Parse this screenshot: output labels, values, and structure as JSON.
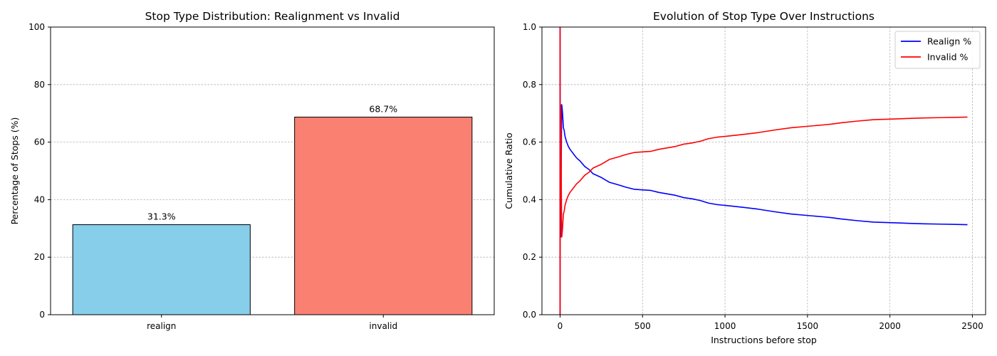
{
  "chart_data": [
    {
      "type": "bar",
      "title": "Stop Type Distribution: Realignment vs Invalid",
      "xlabel": "",
      "ylabel": "Percentage of Stops (%)",
      "ylim": [
        0,
        100
      ],
      "yticks": [
        0,
        20,
        40,
        60,
        80,
        100
      ],
      "grid": "y",
      "categories": [
        "realign",
        "invalid"
      ],
      "values": [
        31.3,
        68.7
      ],
      "value_labels": [
        "31.3%",
        "68.7%"
      ],
      "colors": [
        "#87ceeb",
        "#fa8072"
      ],
      "edgecolor": "#000000"
    },
    {
      "type": "line",
      "title": "Evolution of Stop Type Over Instructions",
      "xlabel": "Instructions before stop",
      "ylabel": "Cumulative Ratio",
      "xlim": [
        -110,
        2580
      ],
      "ylim": [
        0,
        1
      ],
      "xticks": [
        0,
        500,
        1000,
        1500,
        2000,
        2500
      ],
      "yticks": [
        0.0,
        0.2,
        0.4,
        0.6,
        0.8,
        1.0
      ],
      "ytick_labels": [
        "0.0",
        "0.2",
        "0.4",
        "0.6",
        "0.8",
        "1.0"
      ],
      "grid": "both",
      "legend": "top-right",
      "series": [
        {
          "name": "Realign %",
          "color": "#0000ff",
          "x": [
            0,
            0,
            1,
            2,
            3,
            5,
            8,
            10,
            12,
            15,
            20,
            25,
            30,
            40,
            50,
            60,
            80,
            100,
            120,
            150,
            175,
            200,
            250,
            300,
            350,
            400,
            450,
            500,
            550,
            600,
            650,
            700,
            750,
            800,
            850,
            900,
            950,
            1000,
            1100,
            1200,
            1300,
            1400,
            1500,
            1600,
            1650,
            1700,
            1800,
            1900,
            2000,
            2100,
            2200,
            2300,
            2400,
            2470
          ],
          "y": [
            0.0,
            1.0,
            0.5,
            0.3,
            0.27,
            0.3,
            0.6,
            0.73,
            0.72,
            0.7,
            0.65,
            0.64,
            0.62,
            0.6,
            0.585,
            0.575,
            0.56,
            0.545,
            0.535,
            0.515,
            0.505,
            0.49,
            0.477,
            0.46,
            0.452,
            0.443,
            0.436,
            0.434,
            0.432,
            0.425,
            0.42,
            0.415,
            0.407,
            0.403,
            0.397,
            0.388,
            0.383,
            0.38,
            0.374,
            0.367,
            0.358,
            0.35,
            0.345,
            0.34,
            0.337,
            0.333,
            0.327,
            0.322,
            0.32,
            0.318,
            0.316,
            0.315,
            0.314,
            0.313
          ]
        },
        {
          "name": "Invalid %",
          "color": "#ff0000",
          "x": [
            0,
            0,
            1,
            2,
            3,
            5,
            8,
            10,
            12,
            15,
            20,
            25,
            30,
            40,
            50,
            60,
            80,
            100,
            120,
            150,
            175,
            200,
            250,
            300,
            350,
            400,
            450,
            500,
            550,
            600,
            650,
            700,
            750,
            800,
            850,
            900,
            950,
            1000,
            1100,
            1200,
            1300,
            1400,
            1500,
            1600,
            1650,
            1700,
            1800,
            1900,
            2000,
            2100,
            2200,
            2300,
            2400,
            2470
          ],
          "y": [
            1.0,
            0.0,
            0.5,
            0.7,
            0.73,
            0.7,
            0.4,
            0.27,
            0.28,
            0.3,
            0.35,
            0.36,
            0.38,
            0.4,
            0.415,
            0.425,
            0.44,
            0.455,
            0.465,
            0.485,
            0.495,
            0.51,
            0.523,
            0.54,
            0.548,
            0.557,
            0.564,
            0.566,
            0.568,
            0.575,
            0.58,
            0.585,
            0.593,
            0.597,
            0.603,
            0.612,
            0.617,
            0.62,
            0.626,
            0.633,
            0.642,
            0.65,
            0.655,
            0.66,
            0.663,
            0.667,
            0.673,
            0.678,
            0.68,
            0.682,
            0.684,
            0.685,
            0.686,
            0.687
          ]
        }
      ]
    }
  ]
}
